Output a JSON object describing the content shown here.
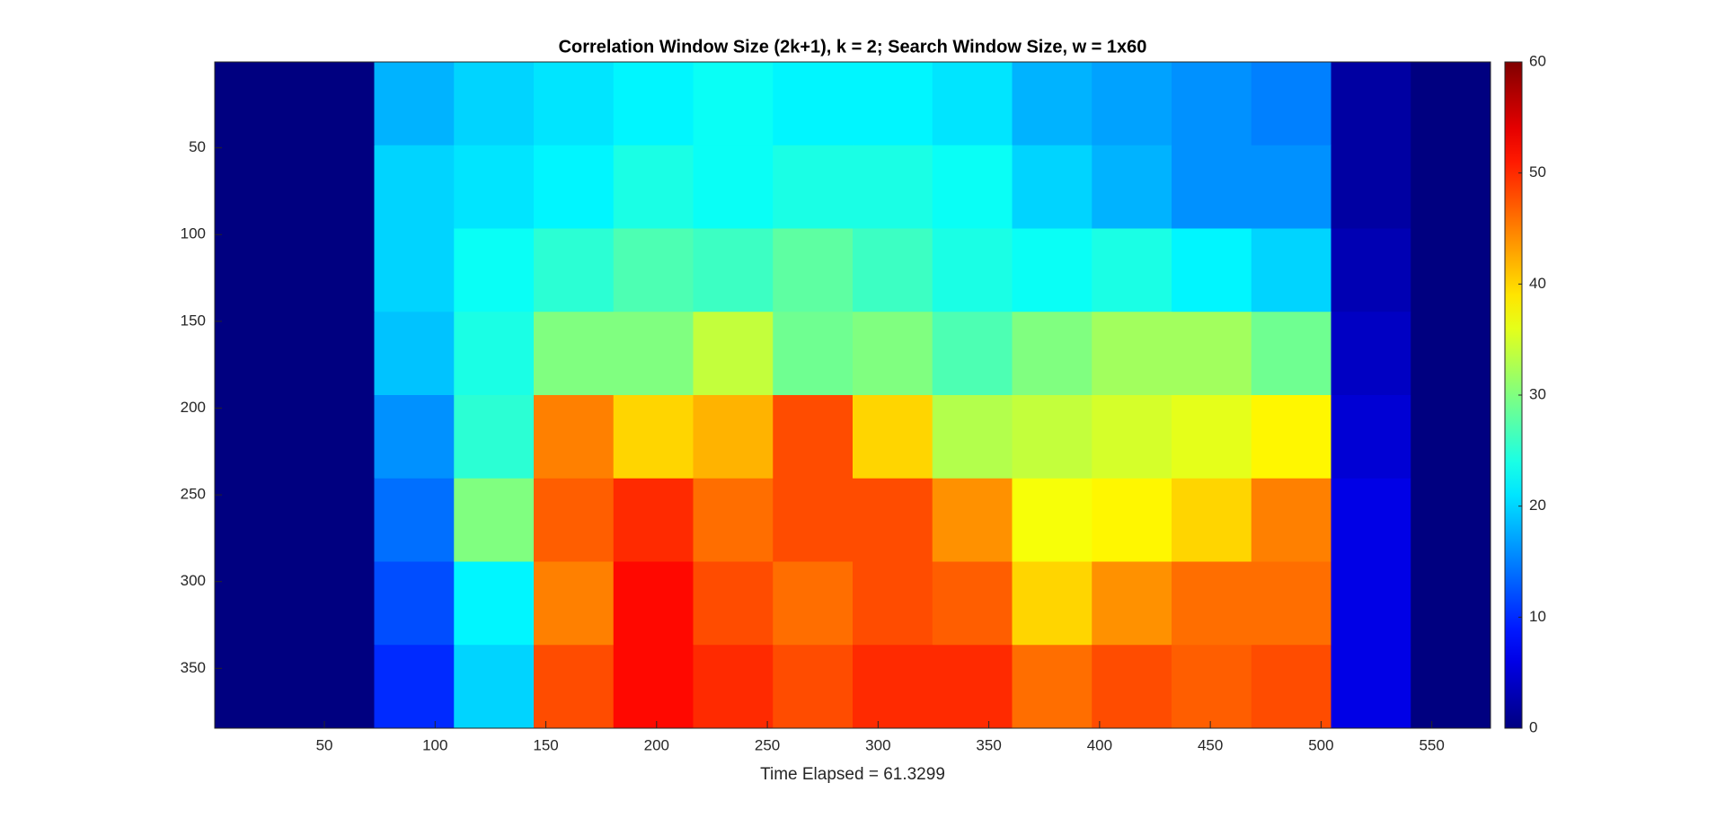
{
  "chart_data": {
    "type": "heatmap",
    "title": "Correlation Window Size (2k+1), k = 2; Search Window Size, w = 1x60",
    "xlabel": "Time Elapsed = 61.3299",
    "colormap": "jet",
    "xlim": [
      0.5,
      576.5
    ],
    "ylim": [
      0.5,
      384.5
    ],
    "y_reversed": true,
    "xticks": [
      50,
      100,
      150,
      200,
      250,
      300,
      350,
      400,
      450,
      500,
      550
    ],
    "yticks": [
      50,
      100,
      150,
      200,
      250,
      300,
      350
    ],
    "clim": [
      0,
      60
    ],
    "cticks": [
      0,
      10,
      20,
      30,
      40,
      50,
      60
    ],
    "x_edges": [
      0.5,
      36.5,
      72.5,
      108.5,
      144.5,
      180.5,
      216.5,
      252.5,
      288.5,
      324.5,
      360.5,
      396.5,
      432.5,
      468.5,
      504.5,
      540.5,
      576.5
    ],
    "y_edges": [
      0.5,
      48.5,
      96.5,
      144.5,
      192.5,
      240.5,
      288.5,
      336.5,
      384.5
    ],
    "values": [
      [
        0,
        0,
        18,
        20,
        21,
        22,
        23,
        22,
        22,
        21,
        18,
        17,
        16,
        15,
        2,
        0
      ],
      [
        0,
        0,
        20,
        21,
        22,
        24,
        23,
        24,
        24,
        23,
        20,
        18,
        16,
        16,
        2,
        0
      ],
      [
        0,
        0,
        20,
        23,
        25,
        27,
        26,
        28,
        26,
        24,
        23,
        24,
        22,
        20,
        3,
        0
      ],
      [
        0,
        0,
        19,
        24,
        30,
        30,
        34,
        29,
        30,
        27,
        30,
        32,
        32,
        29,
        4,
        0
      ],
      [
        0,
        0,
        16,
        25,
        45,
        40,
        42,
        48,
        40,
        33,
        34,
        35,
        36,
        38,
        5,
        0
      ],
      [
        0,
        0,
        14,
        30,
        47,
        50,
        46,
        48,
        48,
        44,
        37,
        38,
        40,
        45,
        6,
        0
      ],
      [
        0,
        0,
        12,
        22,
        45,
        52,
        48,
        46,
        48,
        47,
        40,
        44,
        46,
        46,
        6,
        0
      ],
      [
        0,
        0,
        10,
        20,
        48,
        52,
        50,
        48,
        50,
        50,
        46,
        48,
        47,
        48,
        6,
        0
      ]
    ]
  }
}
